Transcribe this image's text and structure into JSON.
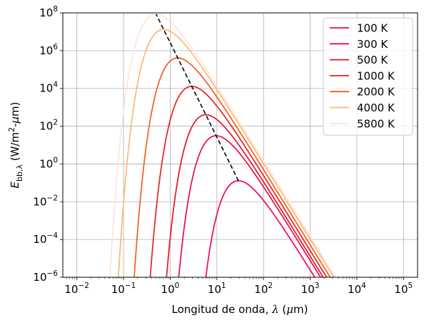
{
  "chart_data": {
    "type": "line",
    "title": "",
    "xlabel": "Longitud de onda, λ (μm)",
    "ylabel": "E_bb,λ (W/m²-μm)",
    "xscale": "log",
    "yscale": "log",
    "xlim": [
      0.005,
      200000
    ],
    "ylim": [
      1e-06,
      100000000.0
    ],
    "xticks": [
      0.01,
      0.1,
      1,
      10,
      100,
      1000,
      10000,
      100000
    ],
    "xtick_labels": [
      "10^-2",
      "10^-1",
      "10^0",
      "10^1",
      "10^2",
      "10^3",
      "10^4",
      "10^5"
    ],
    "yticks": [
      1e-06,
      0.0001,
      0.01,
      1,
      100,
      10000,
      1000000,
      100000000
    ],
    "ytick_labels": [
      "10^-6",
      "10^-4",
      "10^-2",
      "10^0",
      "10^2",
      "10^4",
      "10^6",
      "10^8"
    ],
    "grid": true,
    "legend_position": "top-right",
    "series": [
      {
        "name": "100 K",
        "temperature_K": 100,
        "color": "#f0046c",
        "curve": "Planck blackbody spectral emissive power at 100 K"
      },
      {
        "name": "300 K",
        "temperature_K": 300,
        "color": "#ea0b42",
        "curve": "Planck blackbody spectral emissive power at 300 K"
      },
      {
        "name": "500 K",
        "temperature_K": 500,
        "color": "#e8102e",
        "curve": "Planck blackbody spectral emissive power at 500 K"
      },
      {
        "name": "1000 K",
        "temperature_K": 1000,
        "color": "#e4241a",
        "curve": "Planck blackbody spectral emissive power at 1000 K"
      },
      {
        "name": "2000 K",
        "temperature_K": 2000,
        "color": "#f25c22",
        "curve": "Planck blackbody spectral emissive power at 2000 K"
      },
      {
        "name": "4000 K",
        "temperature_K": 4000,
        "color": "#fbb873",
        "curve": "Planck blackbody spectral emissive power at 4000 K"
      },
      {
        "name": "5800 K",
        "temperature_K": 5800,
        "color": "#fde5d7",
        "curve": "Planck blackbody spectral emissive power at 5800 K"
      }
    ],
    "peak_line": {
      "style": "dashed",
      "color": "#000000",
      "description": "Wien displacement locus through the curve maxima",
      "t_range_K": [
        100,
        5800
      ]
    },
    "constants": {
      "C1": 374200000,
      "C2": 14388,
      "wien_b": 2897.8
    }
  }
}
